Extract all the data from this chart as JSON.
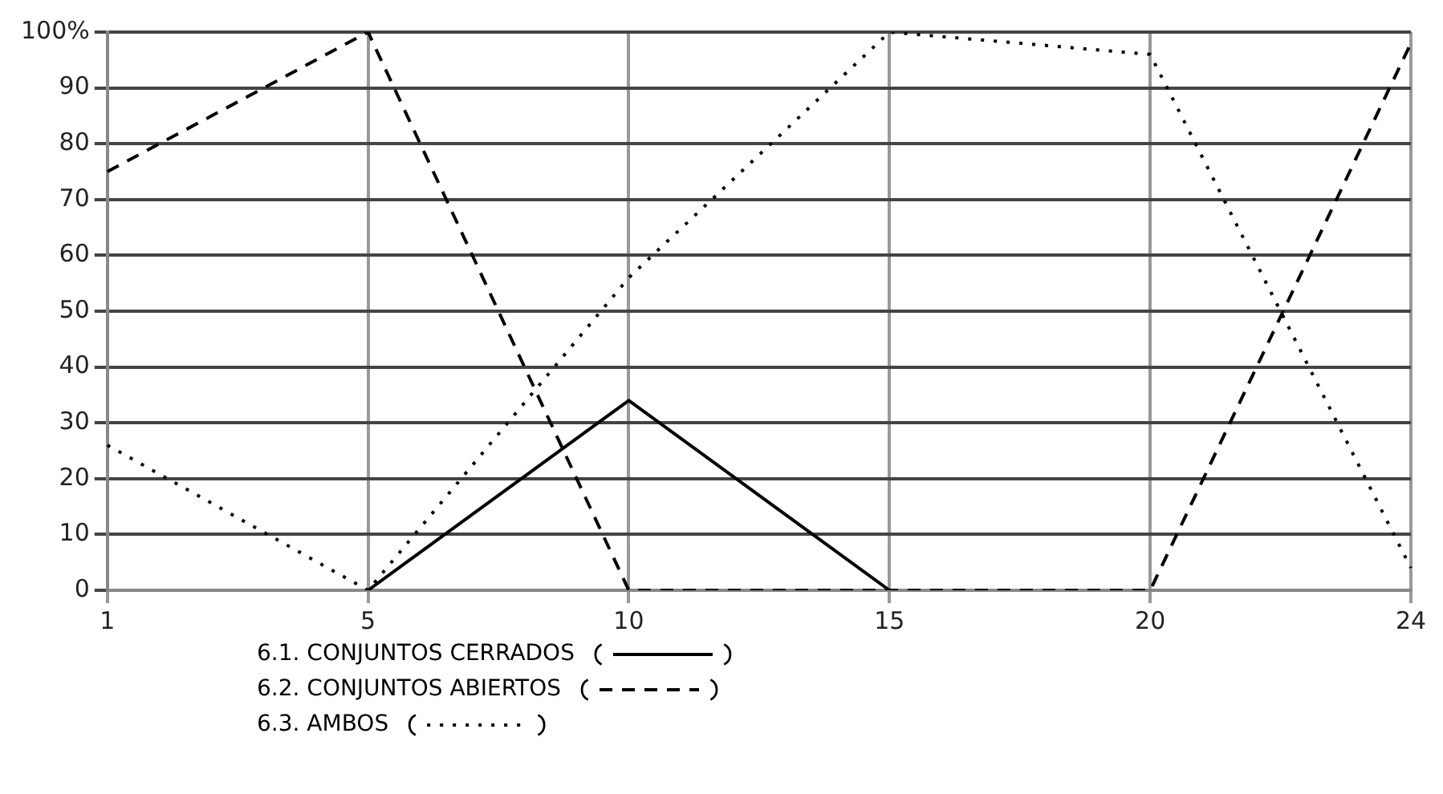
{
  "chart_data": {
    "type": "line",
    "categories": [
      "1",
      "5",
      "10",
      "15",
      "20",
      "24"
    ],
    "series": [
      {
        "name": "6.1. CONJUNTOS CERRADOS",
        "color": "#000000",
        "line_style": "solid",
        "values": [
          null,
          0,
          34,
          0,
          null,
          null
        ]
      },
      {
        "name": "6.2. CONJUNTOS ABIERTOS",
        "color": "#000000",
        "line_style": "dashed",
        "values": [
          75,
          100,
          0,
          0,
          0,
          98
        ]
      },
      {
        "name": "6.3. AMBOS",
        "color": "#000000",
        "line_style": "dotted",
        "values": [
          26,
          0,
          56,
          100,
          96,
          4
        ]
      }
    ],
    "ylim": [
      0,
      100
    ],
    "yticks": [
      0,
      10,
      20,
      30,
      40,
      50,
      60,
      70,
      80,
      90,
      {
        "value": 100,
        "label": "100%"
      }
    ],
    "grid": true,
    "legend": "bottom",
    "marker": "none"
  }
}
